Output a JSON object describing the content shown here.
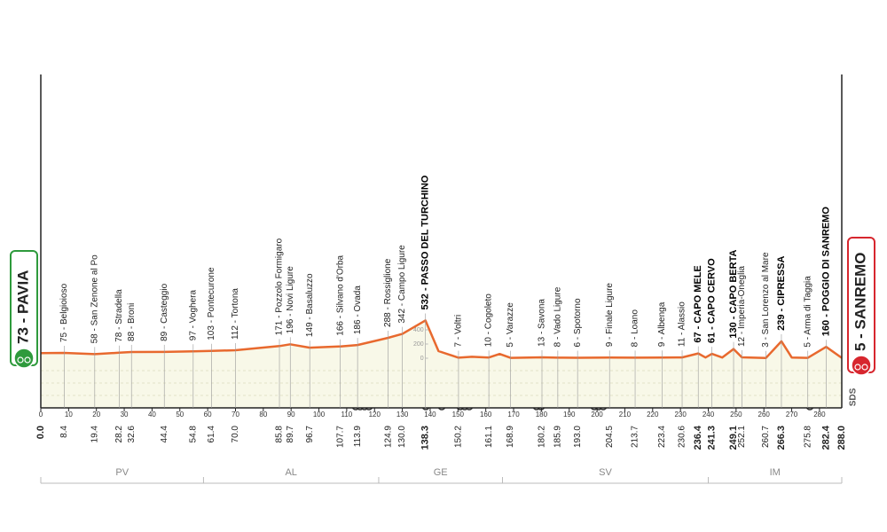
{
  "chart_data": {
    "type": "area",
    "color": "#e8692e",
    "fill": "#f8f8e8",
    "xlim": [
      0,
      288
    ],
    "ylim": [
      -700,
      4000
    ],
    "xticks": [
      0,
      10,
      20,
      30,
      40,
      50,
      60,
      70,
      80,
      90,
      100,
      110,
      120,
      130,
      140,
      150,
      160,
      170,
      180,
      190,
      200,
      210,
      220,
      230,
      240,
      250,
      260,
      270,
      280
    ],
    "yticks": [
      0,
      200,
      400
    ],
    "x": [
      0,
      8.4,
      19.4,
      28.2,
      32.6,
      44.4,
      54.8,
      61.4,
      70,
      85.8,
      89.7,
      96.7,
      107.7,
      113.9,
      124.9,
      130,
      138.3,
      143,
      150.2,
      155,
      161.1,
      165,
      168.9,
      180.2,
      185.9,
      193,
      204.5,
      213.7,
      223.4,
      230.6,
      236.4,
      239,
      241.3,
      245,
      249.1,
      252.1,
      260.7,
      266.3,
      270,
      275.8,
      282.4,
      288
    ],
    "values": [
      73,
      75,
      58,
      78,
      88,
      89,
      97,
      103,
      112,
      171,
      196,
      149,
      166,
      186,
      288,
      342,
      532,
      100,
      7,
      20,
      10,
      60,
      5,
      13,
      8,
      6,
      9,
      8,
      9,
      11,
      67,
      10,
      61,
      10,
      130,
      12,
      3,
      239,
      10,
      5,
      160,
      5
    ],
    "start": {
      "km": {
        "value": 0,
        "label": "0.0"
      },
      "label": "73 - PAVIA",
      "color": "#2e9a3c"
    },
    "finish": {
      "km": {
        "value": 288,
        "label": "288.0"
      },
      "label": "5 - SANREMO",
      "color": "#d7262e"
    },
    "waypoints": [
      {
        "km": 8.4,
        "label": "75 - Belgioioso"
      },
      {
        "km": 19.4,
        "label": "58 - San Zenone al Po"
      },
      {
        "km": 28.2,
        "label": "78 - Stradella"
      },
      {
        "km": 32.6,
        "label": "88 - Broni"
      },
      {
        "km": 44.4,
        "label": "89 - Casteggio"
      },
      {
        "km": 54.8,
        "label": "97 - Voghera"
      },
      {
        "km": 61.4,
        "label": "103 - Pontecurone"
      },
      {
        "km": {
          "value": 70,
          "label": "70.0"
        },
        "label": "112 - Tortona"
      },
      {
        "km": 85.8,
        "label": "171 - Pozzolo Formigaro"
      },
      {
        "km": 89.7,
        "label": "196 - Novi Ligure"
      },
      {
        "km": 96.7,
        "label": "149 - Basaluzzo"
      },
      {
        "km": 107.7,
        "label": "166 - Silvano d'Orba"
      },
      {
        "km": 113.9,
        "label": "186 - Ovada"
      },
      {
        "km": 124.9,
        "label": "288 - Rossiglione"
      },
      {
        "km": {
          "value": 130,
          "label": "130.0"
        },
        "label": "342 - Campo Ligure"
      },
      {
        "km": 138.3,
        "label": "532 - PASSO DEL TURCHINO",
        "bold": true
      },
      {
        "km": 150.2,
        "label": "7 - Voltri"
      },
      {
        "km": 161.1,
        "label": "10 - Cogoleto"
      },
      {
        "km": 168.9,
        "label": "5 - Varazze"
      },
      {
        "km": 180.2,
        "label": "13 - Savona"
      },
      {
        "km": 185.9,
        "label": "8 - Vado Ligure"
      },
      {
        "km": {
          "value": 193,
          "label": "193.0"
        },
        "label": "6 - Spotorno"
      },
      {
        "km": 204.5,
        "label": "9 - Finale Ligure"
      },
      {
        "km": 213.7,
        "label": "8 - Loano"
      },
      {
        "km": 223.4,
        "label": "9 - Albenga"
      },
      {
        "km": 230.6,
        "label": "11 - Alassio"
      },
      {
        "km": 236.4,
        "label": "67 - CAPO MELE",
        "bold": true
      },
      {
        "km": 241.3,
        "label": "61 - CAPO CERVO",
        "bold": true
      },
      {
        "km": 249.1,
        "label": "130 - CAPO BERTA",
        "bold": true
      },
      {
        "km": 252.1,
        "label": "12 - Imperia-Oneglia"
      },
      {
        "km": 260.7,
        "label": "3 - San Lorenzo al Mare"
      },
      {
        "km": 266.3,
        "label": "239 - CIPRESSA",
        "bold": true
      },
      {
        "km": 275.8,
        "label": "5 - Arma di Taggia"
      },
      {
        "km": 282.4,
        "label": "160 - POGGIO DI SANREMO",
        "bold": true
      }
    ],
    "regions": [
      {
        "name": "PV",
        "end": 58.5
      },
      {
        "name": "AL",
        "end": 121.5
      },
      {
        "name": "GE",
        "end": 166
      },
      {
        "name": "SV",
        "end": 240
      },
      {
        "name": "IM",
        "end": 288
      }
    ],
    "logo": "SDS"
  }
}
